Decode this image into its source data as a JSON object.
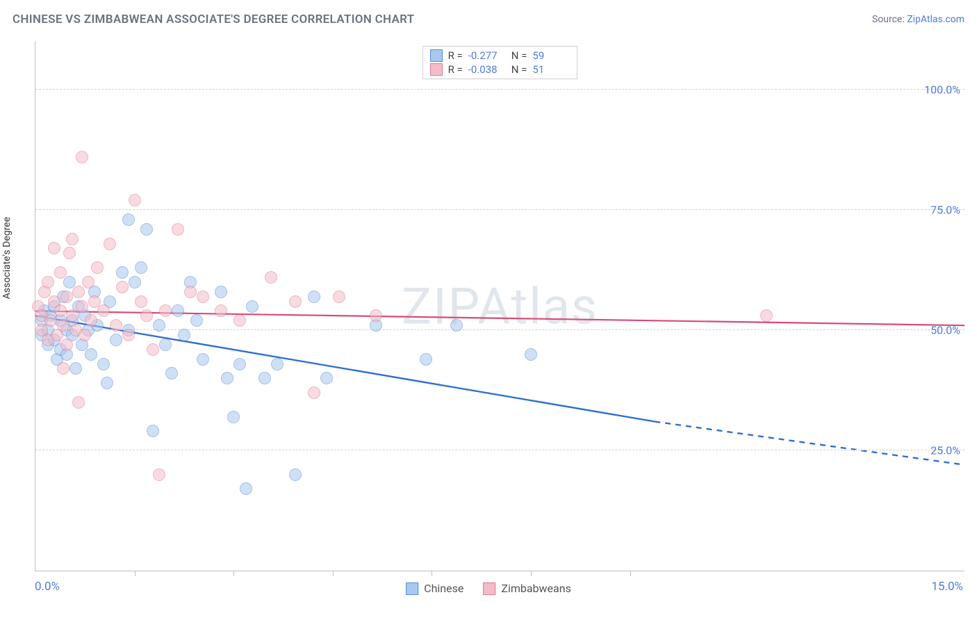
{
  "title": "CHINESE VS ZIMBABWEAN ASSOCIATE'S DEGREE CORRELATION CHART",
  "source_label": "Source:",
  "source_site": "ZipAtlas.com",
  "watermark": "ZIPAtlas",
  "yaxis_title": "Associate's Degree",
  "chart": {
    "type": "scatter",
    "xlim": [
      0,
      15
    ],
    "ylim": [
      0,
      110
    ],
    "x_tick_positions": [
      1.6,
      3.2,
      4.8,
      6.4,
      8.0,
      9.6
    ],
    "x_start_label": "0.0%",
    "x_end_label": "15.0%",
    "y_gridlines": [
      {
        "value": 25,
        "label": "25.0%"
      },
      {
        "value": 50,
        "label": "50.0%"
      },
      {
        "value": 75,
        "label": "75.0%"
      },
      {
        "value": 100,
        "label": "100.0%"
      }
    ],
    "background_color": "#ffffff",
    "grid_color": "#d0d0d0",
    "axis_color": "#bfbfbf",
    "marker_radius": 9,
    "marker_opacity": 0.55,
    "series": [
      {
        "name": "Chinese",
        "color_fill": "#a9c7ef",
        "color_stroke": "#5a8ed6",
        "R": "-0.277",
        "N": "59",
        "trend": {
          "x1": 0,
          "y1": 53,
          "x2_solid": 10,
          "y2_solid": 31,
          "x2": 15,
          "y2": 22,
          "color": "#2f6fd0",
          "width": 2.4
        },
        "points": [
          [
            0.1,
            52
          ],
          [
            0.1,
            49
          ],
          [
            0.15,
            54
          ],
          [
            0.2,
            50
          ],
          [
            0.2,
            47
          ],
          [
            0.25,
            53
          ],
          [
            0.3,
            55
          ],
          [
            0.3,
            48
          ],
          [
            0.35,
            44
          ],
          [
            0.4,
            52
          ],
          [
            0.4,
            46
          ],
          [
            0.45,
            57
          ],
          [
            0.5,
            50
          ],
          [
            0.5,
            45
          ],
          [
            0.55,
            60
          ],
          [
            0.6,
            49
          ],
          [
            0.6,
            52
          ],
          [
            0.65,
            42
          ],
          [
            0.7,
            55
          ],
          [
            0.75,
            47
          ],
          [
            0.8,
            53
          ],
          [
            0.85,
            50
          ],
          [
            0.9,
            45
          ],
          [
            0.95,
            58
          ],
          [
            1.0,
            51
          ],
          [
            1.1,
            43
          ],
          [
            1.2,
            56
          ],
          [
            1.3,
            48
          ],
          [
            1.4,
            62
          ],
          [
            1.5,
            50
          ],
          [
            1.5,
            73
          ],
          [
            1.6,
            60
          ],
          [
            1.7,
            63
          ],
          [
            1.8,
            71
          ],
          [
            1.9,
            29
          ],
          [
            2.0,
            51
          ],
          [
            2.1,
            47
          ],
          [
            2.2,
            41
          ],
          [
            2.3,
            54
          ],
          [
            2.4,
            49
          ],
          [
            2.5,
            60
          ],
          [
            2.6,
            52
          ],
          [
            2.7,
            44
          ],
          [
            3.0,
            58
          ],
          [
            3.1,
            40
          ],
          [
            3.2,
            32
          ],
          [
            3.3,
            43
          ],
          [
            3.4,
            17
          ],
          [
            3.5,
            55
          ],
          [
            3.7,
            40
          ],
          [
            3.9,
            43
          ],
          [
            4.2,
            20
          ],
          [
            4.5,
            57
          ],
          [
            4.7,
            40
          ],
          [
            5.5,
            51
          ],
          [
            6.3,
            44
          ],
          [
            6.8,
            51
          ],
          [
            8.0,
            45
          ],
          [
            1.15,
            39
          ]
        ]
      },
      {
        "name": "Zimbabweans",
        "color_fill": "#f4bcc9",
        "color_stroke": "#e07a93",
        "R": "-0.038",
        "N": "51",
        "trend": {
          "x1": 0,
          "y1": 54,
          "x2_solid": 15,
          "y2_solid": 51,
          "x2": 15,
          "y2": 51,
          "color": "#d94a74",
          "width": 2.2
        },
        "points": [
          [
            0.05,
            55
          ],
          [
            0.1,
            50
          ],
          [
            0.1,
            53
          ],
          [
            0.15,
            58
          ],
          [
            0.2,
            48
          ],
          [
            0.2,
            60
          ],
          [
            0.25,
            52
          ],
          [
            0.3,
            56
          ],
          [
            0.3,
            67
          ],
          [
            0.35,
            49
          ],
          [
            0.4,
            54
          ],
          [
            0.4,
            62
          ],
          [
            0.45,
            51
          ],
          [
            0.5,
            57
          ],
          [
            0.5,
            47
          ],
          [
            0.55,
            66
          ],
          [
            0.6,
            53
          ],
          [
            0.6,
            69
          ],
          [
            0.65,
            50
          ],
          [
            0.7,
            58
          ],
          [
            0.7,
            35
          ],
          [
            0.75,
            55
          ],
          [
            0.75,
            86
          ],
          [
            0.8,
            49
          ],
          [
            0.85,
            60
          ],
          [
            0.9,
            52
          ],
          [
            0.95,
            56
          ],
          [
            1.0,
            63
          ],
          [
            1.1,
            54
          ],
          [
            1.2,
            68
          ],
          [
            1.3,
            51
          ],
          [
            1.4,
            59
          ],
          [
            1.5,
            49
          ],
          [
            1.6,
            77
          ],
          [
            1.7,
            56
          ],
          [
            1.8,
            53
          ],
          [
            1.9,
            46
          ],
          [
            2.0,
            20
          ],
          [
            2.1,
            54
          ],
          [
            2.3,
            71
          ],
          [
            2.5,
            58
          ],
          [
            2.7,
            57
          ],
          [
            3.0,
            54
          ],
          [
            3.3,
            52
          ],
          [
            3.8,
            61
          ],
          [
            4.2,
            56
          ],
          [
            4.5,
            37
          ],
          [
            4.9,
            57
          ],
          [
            5.5,
            53
          ],
          [
            11.8,
            53
          ],
          [
            0.45,
            42
          ]
        ]
      }
    ]
  },
  "legend_top_labels": {
    "R": "R =",
    "N": "N ="
  },
  "legend_bottom": [
    "Chinese",
    "Zimbabweans"
  ]
}
